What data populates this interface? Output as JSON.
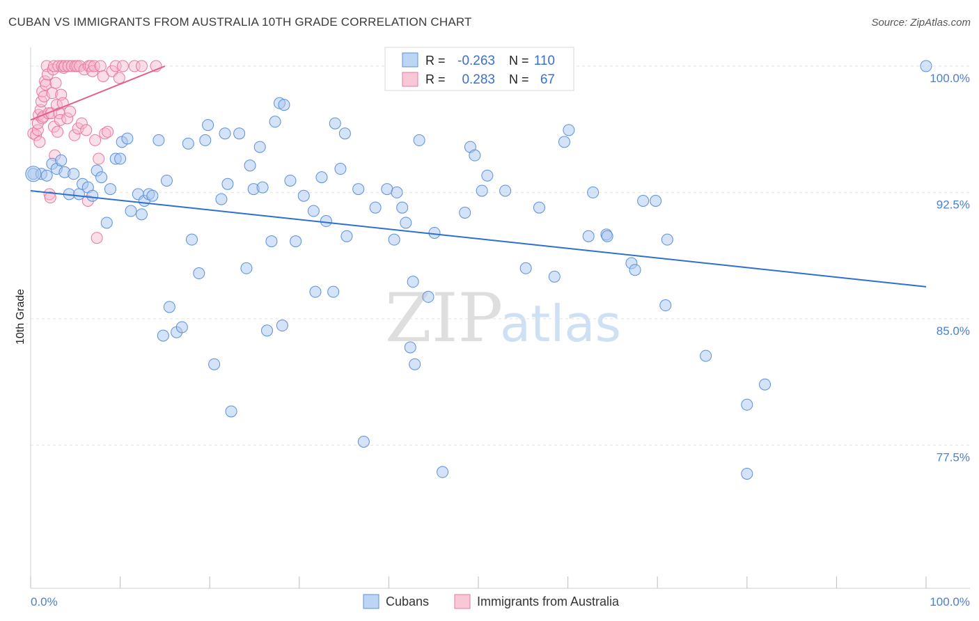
{
  "title": "CUBAN VS IMMIGRANTS FROM AUSTRALIA 10TH GRADE CORRELATION CHART",
  "source": "Source: ZipAtlas.com",
  "watermark": {
    "zip": "ZIP",
    "atlas": "atlas"
  },
  "colors": {
    "cubans_fill": "#a9c7f0",
    "cubans_stroke": "#5b8fdb",
    "cubans_line": "#2d6fd0",
    "aus_fill": "#f7b8cc",
    "aus_stroke": "#e8779c",
    "aus_line": "#e0608a",
    "tick_text": "#4a7fd0",
    "grid": "#e3e3e3"
  },
  "legend": {
    "rows": [
      {
        "r_label": "R =",
        "r_value": "-0.263",
        "n_label": "N =",
        "n_value": "110"
      },
      {
        "r_label": "R =",
        "r_value": "0.283",
        "n_label": "N =",
        "n_value": "67"
      }
    ]
  },
  "bottom_legend": {
    "cubans": "Cubans",
    "aus": "Immigrants from Australia"
  },
  "chart_data": {
    "type": "scatter",
    "title": "CUBAN VS IMMIGRANTS FROM AUSTRALIA 10TH GRADE CORRELATION CHART",
    "xlabel": "",
    "ylabel": "10th Grade",
    "xlim": [
      0,
      100
    ],
    "ylim": [
      69,
      100.7
    ],
    "x_tick_labels": [
      "0.0%",
      "100.0%"
    ],
    "y_ticks": [
      {
        "value": 100.0,
        "label": "100.0%"
      },
      {
        "value": 92.5,
        "label": "92.5%"
      },
      {
        "value": 85.0,
        "label": "85.0%"
      },
      {
        "value": 77.5,
        "label": "77.5%"
      }
    ],
    "grid": true,
    "legend_position": "top-center",
    "series": [
      {
        "name": "Cubans",
        "r": -0.263,
        "n": 110,
        "trend": {
          "x": [
            0,
            100
          ],
          "y": [
            92.6,
            86.9
          ]
        },
        "points": [
          [
            0.3,
            93.6
          ],
          [
            1.2,
            93.6
          ],
          [
            1.8,
            93.5
          ],
          [
            2.4,
            94.2
          ],
          [
            2.9,
            93.9
          ],
          [
            3.4,
            94.4
          ],
          [
            3.8,
            93.7
          ],
          [
            4.3,
            92.4
          ],
          [
            4.8,
            93.6
          ],
          [
            5.4,
            92.4
          ],
          [
            5.8,
            93.0
          ],
          [
            6.4,
            92.8
          ],
          [
            6.9,
            92.3
          ],
          [
            7.4,
            93.8
          ],
          [
            7.9,
            93.4
          ],
          [
            8.5,
            90.7
          ],
          [
            8.9,
            92.7
          ],
          [
            9.5,
            94.5
          ],
          [
            10.0,
            94.5
          ],
          [
            10.2,
            95.5
          ],
          [
            10.8,
            95.7
          ],
          [
            11.2,
            91.4
          ],
          [
            12.0,
            92.4
          ],
          [
            12.4,
            91.2
          ],
          [
            12.7,
            92.0
          ],
          [
            13.2,
            92.4
          ],
          [
            13.6,
            92.3
          ],
          [
            14.3,
            95.6
          ],
          [
            15.2,
            93.2
          ],
          [
            15.5,
            85.7
          ],
          [
            14.8,
            84.0
          ],
          [
            16.3,
            84.2
          ],
          [
            16.9,
            84.5
          ],
          [
            17.6,
            95.4
          ],
          [
            18.0,
            89.7
          ],
          [
            18.8,
            87.7
          ],
          [
            19.5,
            95.6
          ],
          [
            19.8,
            96.5
          ],
          [
            20.5,
            82.3
          ],
          [
            21.3,
            92.1
          ],
          [
            21.7,
            96.0
          ],
          [
            22.0,
            93.0
          ],
          [
            22.4,
            79.5
          ],
          [
            23.3,
            96.0
          ],
          [
            24.1,
            88.0
          ],
          [
            24.5,
            94.1
          ],
          [
            24.9,
            92.7
          ],
          [
            25.6,
            95.2
          ],
          [
            25.9,
            92.8
          ],
          [
            26.4,
            84.3
          ],
          [
            26.9,
            89.6
          ],
          [
            27.3,
            96.7
          ],
          [
            27.8,
            97.8
          ],
          [
            28.3,
            97.7
          ],
          [
            28.1,
            84.6
          ],
          [
            29.0,
            93.2
          ],
          [
            29.6,
            89.6
          ],
          [
            30.5,
            92.3
          ],
          [
            31.6,
            91.4
          ],
          [
            31.8,
            86.6
          ],
          [
            32.5,
            93.4
          ],
          [
            33.0,
            90.8
          ],
          [
            33.8,
            86.6
          ],
          [
            34.0,
            96.6
          ],
          [
            34.6,
            93.9
          ],
          [
            35.1,
            96.0
          ],
          [
            35.3,
            89.9
          ],
          [
            37.2,
            77.7
          ],
          [
            36.6,
            92.7
          ],
          [
            38.5,
            91.6
          ],
          [
            39.8,
            92.7
          ],
          [
            40.6,
            89.7
          ],
          [
            40.9,
            92.5
          ],
          [
            41.5,
            91.6
          ],
          [
            41.9,
            90.7
          ],
          [
            42.4,
            83.3
          ],
          [
            42.7,
            87.2
          ],
          [
            42.9,
            82.3
          ],
          [
            43.4,
            95.6
          ],
          [
            44.4,
            86.3
          ],
          [
            45.1,
            90.1
          ],
          [
            46.0,
            75.9
          ],
          [
            48.5,
            91.3
          ],
          [
            49.1,
            95.2
          ],
          [
            49.6,
            94.7
          ],
          [
            50.4,
            92.6
          ],
          [
            51.0,
            93.5
          ],
          [
            53.0,
            92.6
          ],
          [
            55.3,
            88.0
          ],
          [
            56.8,
            91.6
          ],
          [
            58.5,
            87.5
          ],
          [
            59.6,
            95.5
          ],
          [
            60.1,
            96.2
          ],
          [
            62.3,
            89.9
          ],
          [
            62.8,
            92.5
          ],
          [
            64.3,
            90.0
          ],
          [
            64.4,
            89.9
          ],
          [
            67.1,
            88.3
          ],
          [
            67.5,
            87.9
          ],
          [
            68.4,
            92.0
          ],
          [
            69.8,
            92.0
          ],
          [
            71.1,
            89.7
          ],
          [
            70.9,
            85.8
          ],
          [
            75.4,
            82.8
          ],
          [
            80.0,
            79.9
          ],
          [
            80.0,
            75.8
          ],
          [
            82.0,
            81.1
          ],
          [
            100.0,
            100.0
          ]
        ]
      },
      {
        "name": "Immigrants from Australia",
        "r": 0.283,
        "n": 67,
        "trend": {
          "x": [
            0,
            15
          ],
          "y": [
            96.8,
            100.0
          ]
        },
        "points": [
          [
            0.3,
            96.0
          ],
          [
            0.6,
            95.9
          ],
          [
            0.8,
            96.2
          ],
          [
            0.8,
            96.6
          ],
          [
            0.9,
            97.1
          ],
          [
            1.0,
            95.5
          ],
          [
            1.1,
            97.4
          ],
          [
            1.2,
            97.9
          ],
          [
            1.3,
            96.9
          ],
          [
            1.3,
            98.5
          ],
          [
            1.4,
            97.0
          ],
          [
            1.5,
            98.2
          ],
          [
            1.6,
            99.1
          ],
          [
            1.7,
            98.9
          ],
          [
            1.8,
            100.0
          ],
          [
            1.9,
            99.5
          ],
          [
            2.0,
            97.2
          ],
          [
            2.1,
            92.4
          ],
          [
            2.2,
            92.2
          ],
          [
            2.3,
            97.2
          ],
          [
            2.4,
            98.4
          ],
          [
            2.5,
            99.8
          ],
          [
            2.6,
            100.0
          ],
          [
            2.6,
            96.4
          ],
          [
            2.7,
            94.7
          ],
          [
            2.8,
            99.0
          ],
          [
            2.9,
            97.7
          ],
          [
            3.0,
            96.1
          ],
          [
            3.1,
            100.0
          ],
          [
            3.2,
            97.2
          ],
          [
            3.3,
            96.8
          ],
          [
            3.4,
            98.3
          ],
          [
            3.5,
            100.0
          ],
          [
            3.6,
            97.8
          ],
          [
            3.7,
            99.9
          ],
          [
            3.8,
            100.0
          ],
          [
            4.1,
            96.9
          ],
          [
            4.2,
            100.0
          ],
          [
            4.4,
            97.3
          ],
          [
            4.6,
            100.0
          ],
          [
            4.9,
            95.9
          ],
          [
            5.0,
            100.0
          ],
          [
            5.2,
            100.0
          ],
          [
            5.3,
            96.3
          ],
          [
            5.5,
            100.0
          ],
          [
            5.7,
            96.6
          ],
          [
            6.0,
            99.8
          ],
          [
            6.2,
            96.2
          ],
          [
            6.4,
            92.0
          ],
          [
            6.5,
            100.0
          ],
          [
            6.7,
            100.0
          ],
          [
            6.9,
            99.7
          ],
          [
            7.1,
            100.0
          ],
          [
            7.2,
            95.6
          ],
          [
            7.4,
            89.8
          ],
          [
            7.6,
            94.5
          ],
          [
            7.8,
            100.0
          ],
          [
            8.1,
            99.4
          ],
          [
            8.3,
            96.0
          ],
          [
            8.6,
            96.1
          ],
          [
            9.1,
            99.7
          ],
          [
            9.5,
            100.0
          ],
          [
            9.9,
            99.3
          ],
          [
            10.3,
            100.0
          ],
          [
            11.6,
            100.0
          ],
          [
            12.4,
            100.0
          ],
          [
            14.0,
            100.0
          ]
        ]
      }
    ]
  }
}
